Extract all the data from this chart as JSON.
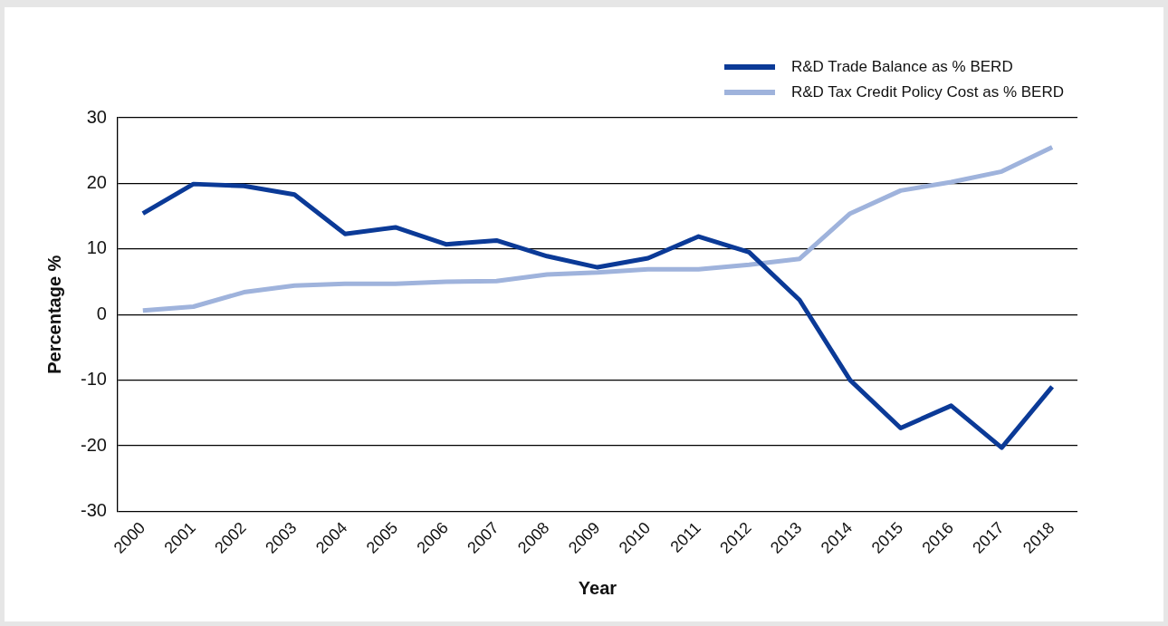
{
  "chart_data": {
    "type": "line",
    "xlabel": "Year",
    "ylabel": "Percentage %",
    "categories": [
      "2000",
      "2001",
      "2002",
      "2003",
      "2004",
      "2005",
      "2006",
      "2007",
      "2008",
      "2009",
      "2010",
      "2011",
      "2012",
      "2013",
      "2014",
      "2015",
      "2016",
      "2017",
      "2018"
    ],
    "series": [
      {
        "name": "R&D Trade Balance as % BERD",
        "color": "#0b3a97",
        "values": [
          15.4,
          19.9,
          19.6,
          18.3,
          12.3,
          13.3,
          10.7,
          11.3,
          8.9,
          7.2,
          8.6,
          11.9,
          9.5,
          2.2,
          -10,
          -17.3,
          -13.9,
          -20.3,
          -11
        ]
      },
      {
        "name": "R&D Tax Credit Policy Cost as % BERD",
        "color": "#9fb3dc",
        "values": [
          0.6,
          1.2,
          3.4,
          4.4,
          4.7,
          4.7,
          5.0,
          5.1,
          6.1,
          6.4,
          6.9,
          6.9,
          7.6,
          8.5,
          15.4,
          18.9,
          20.2,
          21.8,
          25.5
        ]
      }
    ],
    "ylim": [
      -30,
      30
    ],
    "yticks": [
      -30,
      -20,
      -10,
      0,
      10,
      20,
      30
    ],
    "grid": "y",
    "legend": "top right",
    "marker": "none",
    "line_style": "solid"
  }
}
